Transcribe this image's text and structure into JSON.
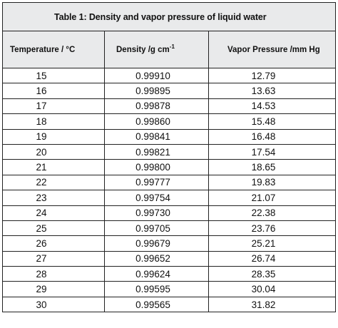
{
  "table": {
    "title": "Table 1:  Density and vapor pressure of liquid water",
    "headers": {
      "temperature": "Temperature / °C",
      "density_prefix": "Density /g cm",
      "density_sup": "-1",
      "vapor_pressure": "Vapor Pressure /mm Hg"
    },
    "rows": [
      {
        "temperature": "15",
        "density": "0.99910",
        "vapor_pressure": "12.79"
      },
      {
        "temperature": "16",
        "density": "0.99895",
        "vapor_pressure": "13.63"
      },
      {
        "temperature": "17",
        "density": "0.99878",
        "vapor_pressure": "14.53"
      },
      {
        "temperature": "18",
        "density": "0.99860",
        "vapor_pressure": "15.48"
      },
      {
        "temperature": "19",
        "density": "0.99841",
        "vapor_pressure": "16.48"
      },
      {
        "temperature": "20",
        "density": "0.99821",
        "vapor_pressure": "17.54"
      },
      {
        "temperature": "21",
        "density": "0.99800",
        "vapor_pressure": "18.65"
      },
      {
        "temperature": "22",
        "density": "0.99777",
        "vapor_pressure": "19.83"
      },
      {
        "temperature": "23",
        "density": "0.99754",
        "vapor_pressure": "21.07"
      },
      {
        "temperature": "24",
        "density": "0.99730",
        "vapor_pressure": "22.38"
      },
      {
        "temperature": "25",
        "density": "0.99705",
        "vapor_pressure": "23.76"
      },
      {
        "temperature": "26",
        "density": "0.99679",
        "vapor_pressure": "25.21"
      },
      {
        "temperature": "27",
        "density": "0.99652",
        "vapor_pressure": "26.74"
      },
      {
        "temperature": "28",
        "density": "0.99624",
        "vapor_pressure": "28.35"
      },
      {
        "temperature": "29",
        "density": "0.99595",
        "vapor_pressure": "30.04"
      },
      {
        "temperature": "30",
        "density": "0.99565",
        "vapor_pressure": "31.82"
      }
    ]
  }
}
